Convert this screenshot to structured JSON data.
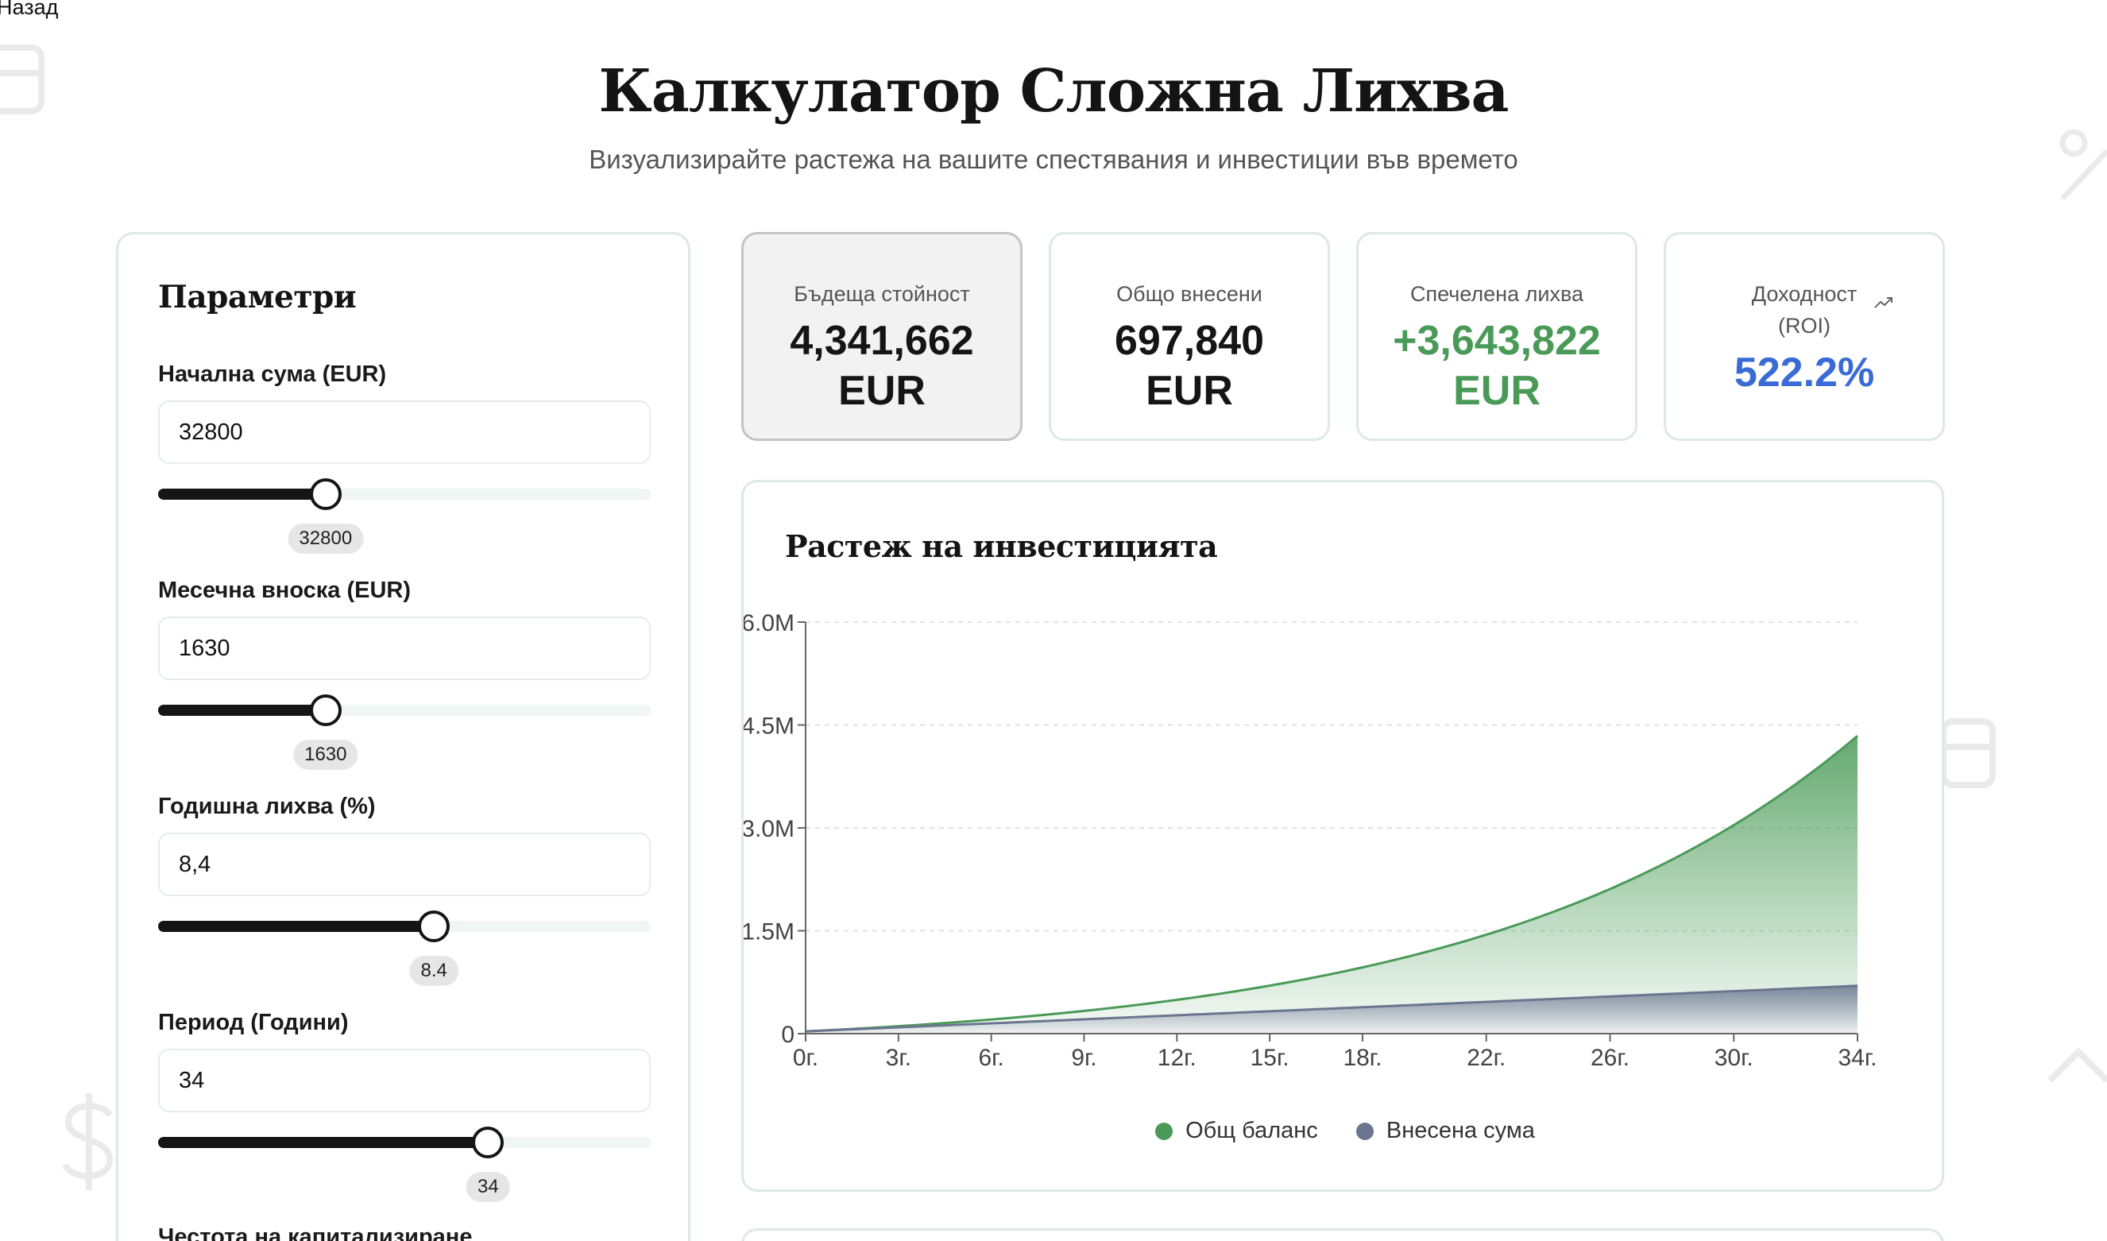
{
  "nav": {
    "back_label": "Назад"
  },
  "header": {
    "title": "Калкулатор Сложна Лихва",
    "subtitle": "Визуализирайте растежа на вашите спестявания и инвестиции във времето"
  },
  "params": {
    "title": "Параметри",
    "fields": [
      {
        "label": "Начална сума (EUR)",
        "value": "32800",
        "bubble": "32800",
        "fill_fraction": 0.34
      },
      {
        "label": "Месечна вноска (EUR)",
        "value": "1630",
        "bubble": "1630",
        "fill_fraction": 0.34
      },
      {
        "label": "Годишна лихва (%)",
        "value": "8,4",
        "bubble": "8.4",
        "fill_fraction": 0.56
      },
      {
        "label": "Период (Години)",
        "value": "34",
        "bubble": "34",
        "fill_fraction": 0.67
      }
    ],
    "next_label": "Честота на капитализиране"
  },
  "stats": [
    {
      "label": "Бъдеща стойност",
      "value": "4,341,662",
      "unit": "EUR",
      "color": "#151515"
    },
    {
      "label": "Общо внесени",
      "value": "697,840",
      "unit": "EUR",
      "color": "#151515"
    },
    {
      "label": "Спечелена лихва",
      "value": "+3,643,822",
      "unit": "EUR",
      "color": "#4a9a57"
    },
    {
      "label": "Доходност (ROI)",
      "value": "522.2%",
      "unit": "",
      "color": "#3a6ad6",
      "icon": "trending-up-icon"
    }
  ],
  "chart": {
    "title": "Растеж на инвестицията",
    "legend": [
      {
        "label": "Общ баланс",
        "color": "#4a9a57"
      },
      {
        "label": "Внесена сума",
        "color": "#6b7590"
      }
    ]
  },
  "chart_data": {
    "type": "area",
    "title": "Растеж на инвестицията",
    "x_tick_labels": [
      "0г.",
      "3г.",
      "6г.",
      "9г.",
      "12г.",
      "15г.",
      "18г.",
      "22г.",
      "26г.",
      "30г.",
      "34г."
    ],
    "x_tick_years": [
      0,
      3,
      6,
      9,
      12,
      15,
      18,
      22,
      26,
      30,
      34
    ],
    "y_tick_labels": [
      "0",
      "1.5M",
      "3.0M",
      "4.5M",
      "6.0M"
    ],
    "y_tick_values": [
      0,
      1500000,
      3000000,
      4500000,
      6000000
    ],
    "ylim": [
      0,
      6000000
    ],
    "xlim": [
      0,
      34
    ],
    "grid": true,
    "legend_position": "bottom",
    "series": [
      {
        "name": "Общ баланс",
        "color": "#4a9a57",
        "initial": 32800,
        "monthly": 1630,
        "annual_rate": 8.4,
        "end_value": 4341662
      },
      {
        "name": "Внесена сума",
        "color": "#6b7590",
        "initial": 32800,
        "monthly": 1630,
        "end_value": 697840
      }
    ]
  }
}
